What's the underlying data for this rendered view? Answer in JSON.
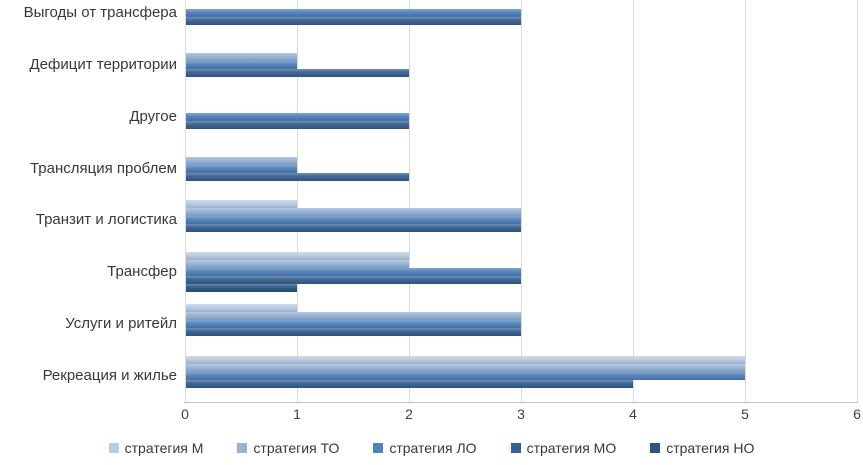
{
  "figure": {
    "background": "#FFFFFF"
  },
  "chart_data": {
    "type": "bar",
    "orientation": "horizontal",
    "title": "",
    "xlabel": "",
    "ylabel": "",
    "categories": [
      "Выгоды от трансфера",
      "Дефицит территории",
      "Другое",
      "Трансляция проблем",
      "Транзит и логистика",
      "Трансфер",
      "Услуги и ритейл",
      "Рекреация и жилье"
    ],
    "series": [
      {
        "name": "стратегия М",
        "color": "#B8CCE4",
        "values": [
          0,
          0,
          0,
          0,
          1,
          2,
          1,
          5
        ]
      },
      {
        "name": "стратегия ТО",
        "color": "#95B3D7",
        "values": [
          0,
          1,
          0,
          1,
          3,
          2,
          3,
          5
        ]
      },
      {
        "name": "стратегия ЛО",
        "color": "#4F81BD",
        "values": [
          3,
          1,
          2,
          1,
          3,
          3,
          3,
          5
        ]
      },
      {
        "name": "стратегия МО",
        "color": "#376092",
        "values": [
          3,
          2,
          2,
          2,
          3,
          3,
          3,
          4
        ]
      },
      {
        "name": "стратегия НО",
        "color": "#2B5783",
        "values": [
          0,
          0,
          0,
          0,
          0,
          1,
          0,
          0
        ]
      }
    ],
    "xlim": [
      0,
      6
    ],
    "x_ticks": [
      0,
      1,
      2,
      3,
      4,
      5,
      6
    ],
    "grid": true,
    "legend_position": "bottom",
    "gridline_color": "#D9D9D9",
    "axis_color": "#BFBFBF",
    "text_color": "#3F3F3F"
  }
}
